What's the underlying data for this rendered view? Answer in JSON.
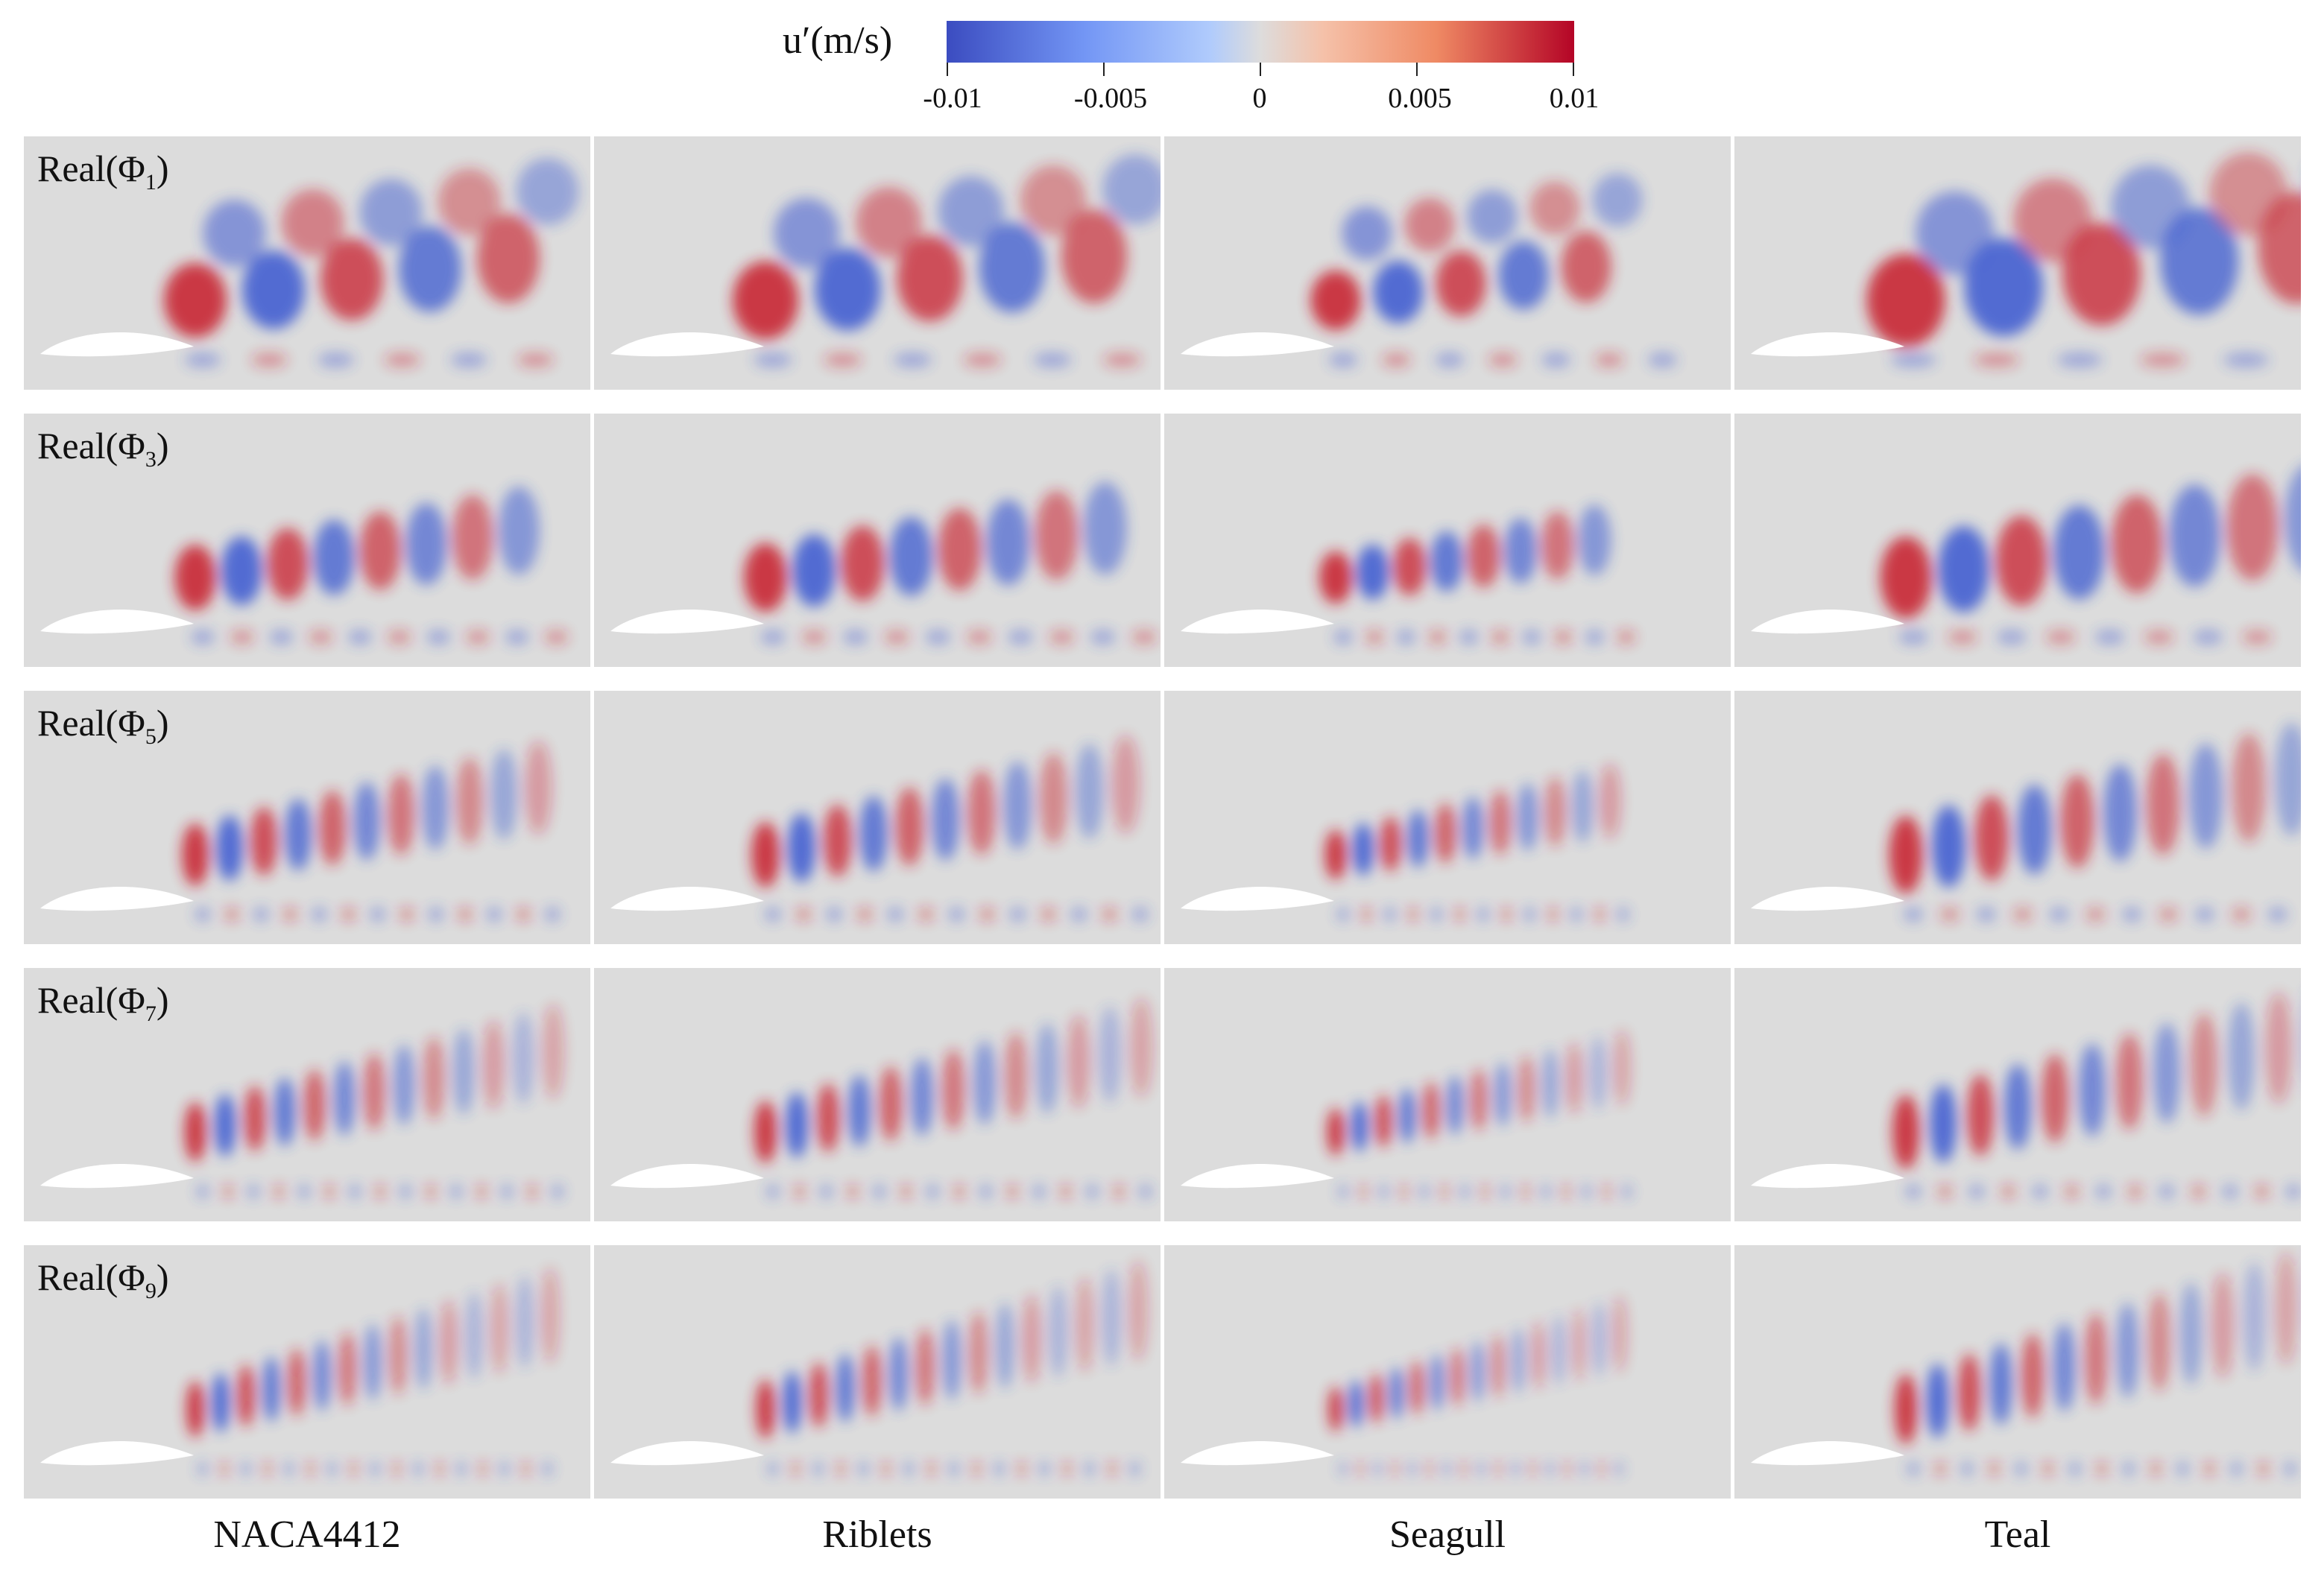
{
  "colorbar": {
    "label": "u′(m/s)",
    "colors": [
      "#3b4cc0",
      "#dddcdc",
      "#b40426"
    ],
    "ticks": [
      "-0.01",
      "-0.005",
      "0",
      "0.005",
      "0.01"
    ]
  },
  "columns": [
    "NACA4412",
    "Riblets",
    "Seagull",
    "Teal"
  ],
  "rows": [
    {
      "label_prefix": "Real(Φ",
      "label_sub": "1",
      "label_suffix": ")"
    },
    {
      "label_prefix": "Real(Φ",
      "label_sub": "3",
      "label_suffix": ")"
    },
    {
      "label_prefix": "Real(Φ",
      "label_sub": "5",
      "label_suffix": ")"
    },
    {
      "label_prefix": "Real(Φ",
      "label_sub": "7",
      "label_suffix": ")"
    },
    {
      "label_prefix": "Real(Φ",
      "label_sub": "9",
      "label_suffix": ")"
    }
  ]
}
